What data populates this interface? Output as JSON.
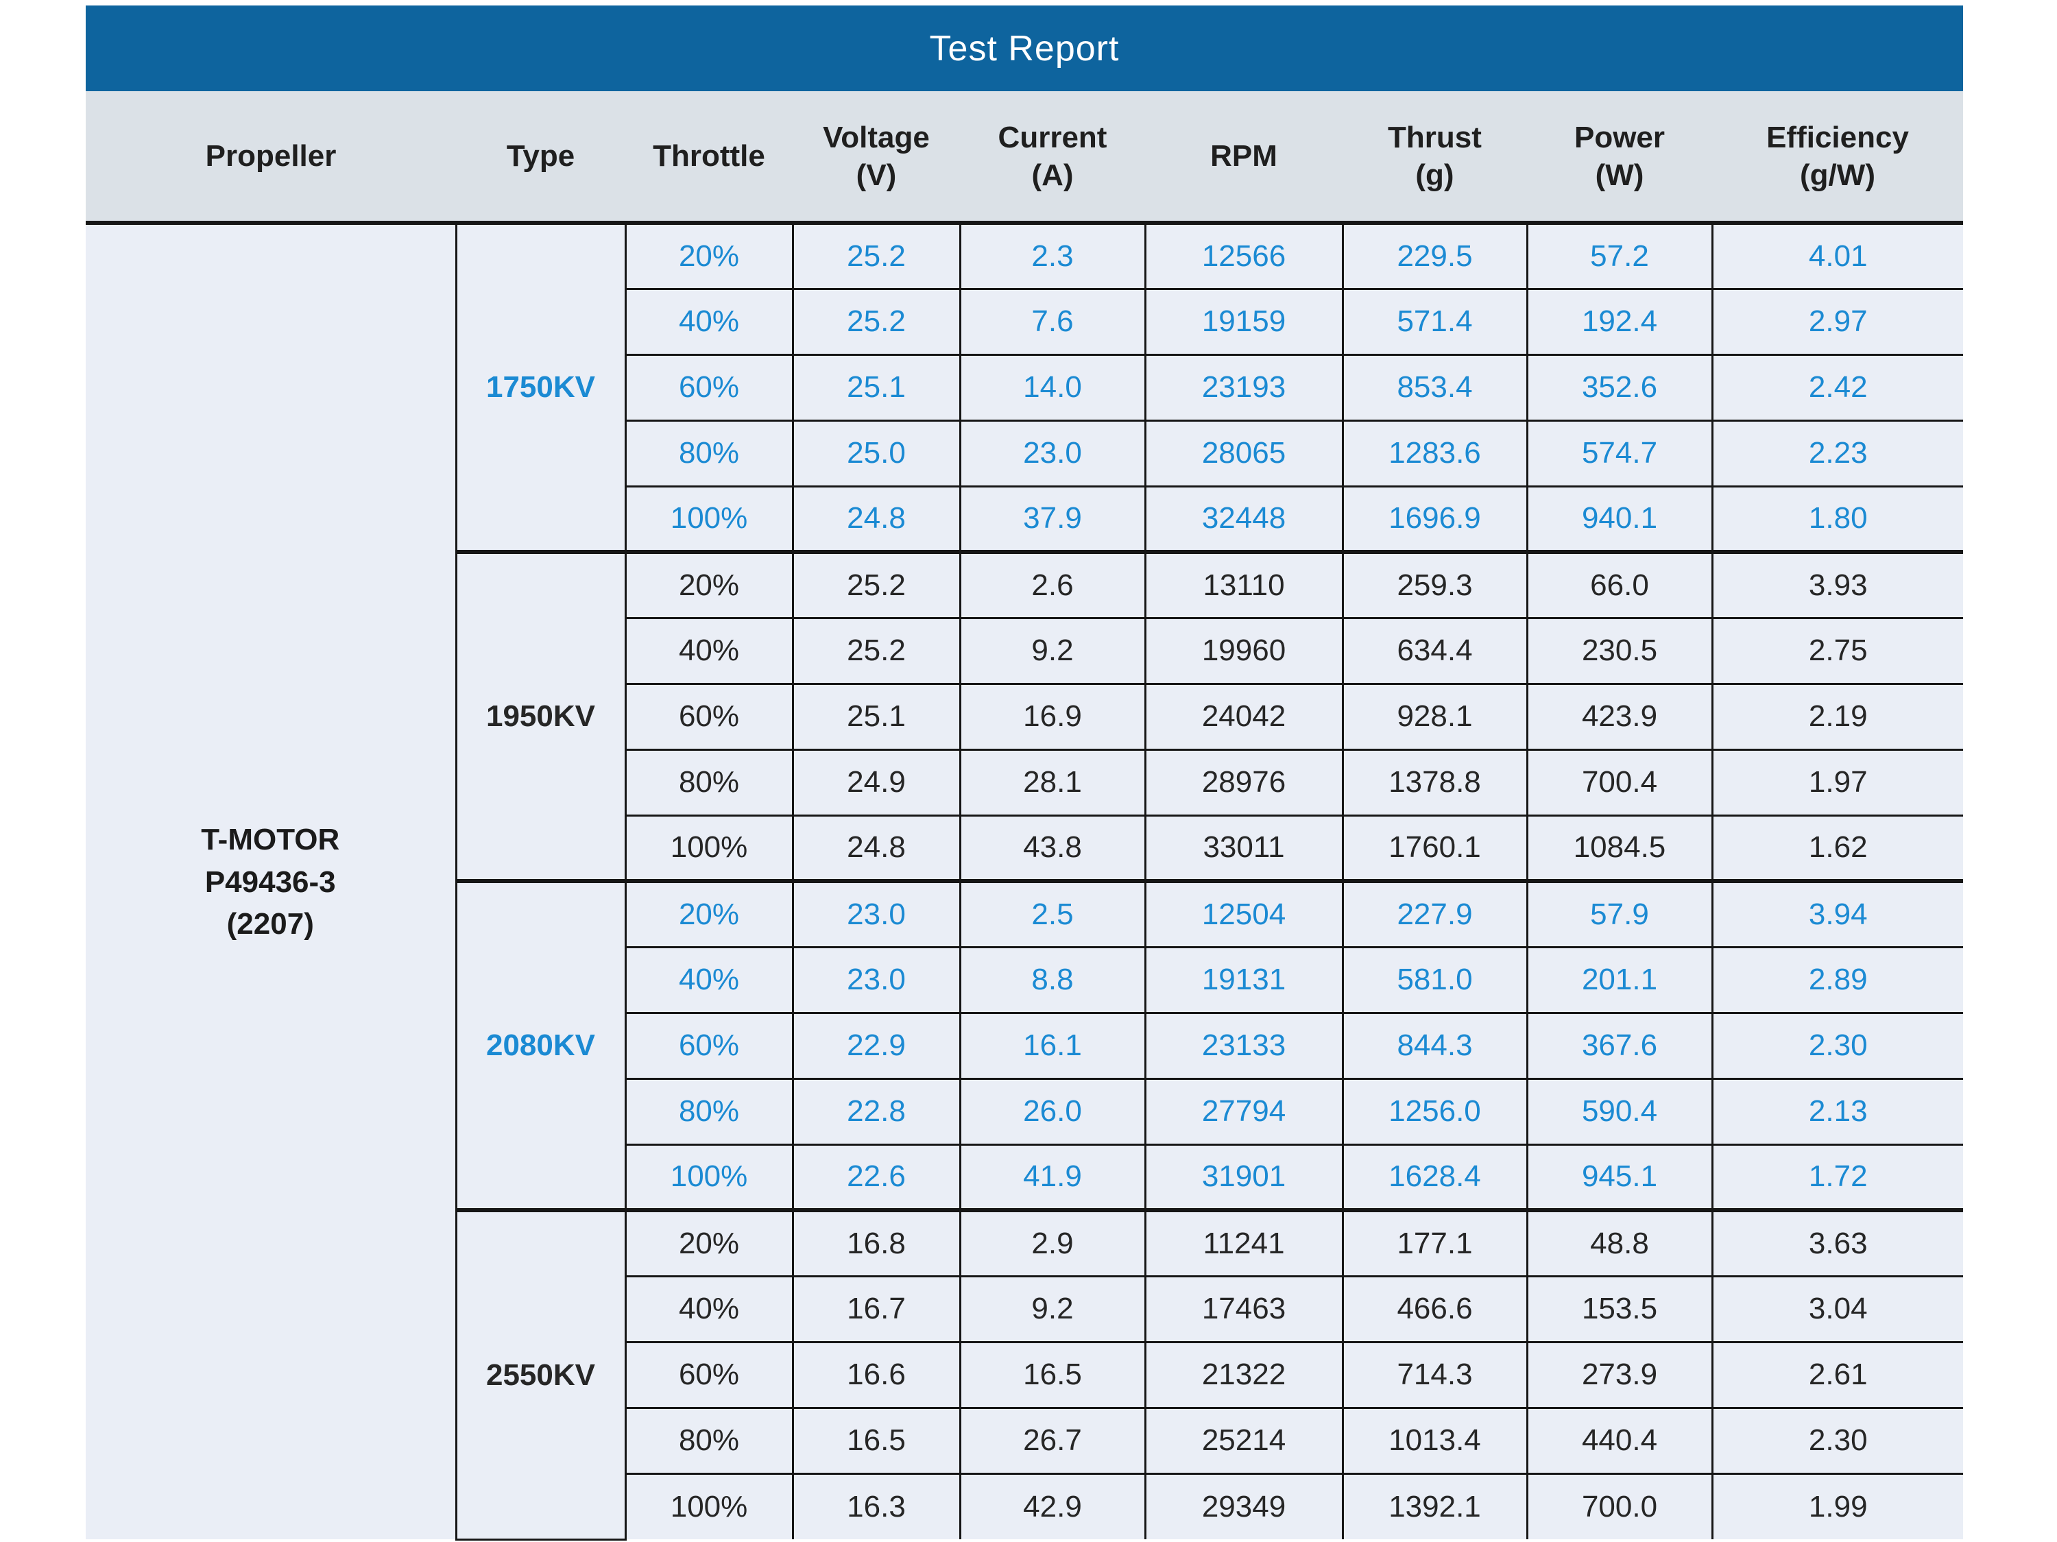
{
  "title": "Test Report",
  "headers": [
    {
      "lines": [
        "Propeller"
      ]
    },
    {
      "lines": [
        "Type"
      ]
    },
    {
      "lines": [
        "Throttle"
      ]
    },
    {
      "lines": [
        "Voltage",
        "(V)"
      ]
    },
    {
      "lines": [
        "Current",
        "(A)"
      ]
    },
    {
      "lines": [
        "RPM"
      ]
    },
    {
      "lines": [
        "Thrust",
        "(g)"
      ]
    },
    {
      "lines": [
        "Power",
        "(W)"
      ]
    },
    {
      "lines": [
        "Efficiency",
        "(g/W)"
      ]
    }
  ],
  "propeller": {
    "name_lines": [
      "T-MOTOR",
      "P49436-3",
      "(2207)"
    ]
  },
  "colors": {
    "title_bar": "#0e649e",
    "title_text": "#ffffff",
    "header_bg": "#dbe1e7",
    "cell_bg": "#eaeef6",
    "accent_blue_text": "#1b8ad3",
    "dark_text": "#262626",
    "grid_border": "#161616"
  },
  "sections": [
    {
      "type": "1750KV",
      "accent": "blue",
      "rows": [
        {
          "throttle": "20%",
          "voltage": "25.2",
          "current": "2.3",
          "rpm": "12566",
          "thrust": "229.5",
          "power": "57.2",
          "efficiency": "4.01"
        },
        {
          "throttle": "40%",
          "voltage": "25.2",
          "current": "7.6",
          "rpm": "19159",
          "thrust": "571.4",
          "power": "192.4",
          "efficiency": "2.97"
        },
        {
          "throttle": "60%",
          "voltage": "25.1",
          "current": "14.0",
          "rpm": "23193",
          "thrust": "853.4",
          "power": "352.6",
          "efficiency": "2.42"
        },
        {
          "throttle": "80%",
          "voltage": "25.0",
          "current": "23.0",
          "rpm": "28065",
          "thrust": "1283.6",
          "power": "574.7",
          "efficiency": "2.23"
        },
        {
          "throttle": "100%",
          "voltage": "24.8",
          "current": "37.9",
          "rpm": "32448",
          "thrust": "1696.9",
          "power": "940.1",
          "efficiency": "1.80"
        }
      ]
    },
    {
      "type": "1950KV",
      "accent": "dark",
      "rows": [
        {
          "throttle": "20%",
          "voltage": "25.2",
          "current": "2.6",
          "rpm": "13110",
          "thrust": "259.3",
          "power": "66.0",
          "efficiency": "3.93"
        },
        {
          "throttle": "40%",
          "voltage": "25.2",
          "current": "9.2",
          "rpm": "19960",
          "thrust": "634.4",
          "power": "230.5",
          "efficiency": "2.75"
        },
        {
          "throttle": "60%",
          "voltage": "25.1",
          "current": "16.9",
          "rpm": "24042",
          "thrust": "928.1",
          "power": "423.9",
          "efficiency": "2.19"
        },
        {
          "throttle": "80%",
          "voltage": "24.9",
          "current": "28.1",
          "rpm": "28976",
          "thrust": "1378.8",
          "power": "700.4",
          "efficiency": "1.97"
        },
        {
          "throttle": "100%",
          "voltage": "24.8",
          "current": "43.8",
          "rpm": "33011",
          "thrust": "1760.1",
          "power": "1084.5",
          "efficiency": "1.62"
        }
      ]
    },
    {
      "type": "2080KV",
      "accent": "blue",
      "rows": [
        {
          "throttle": "20%",
          "voltage": "23.0",
          "current": "2.5",
          "rpm": "12504",
          "thrust": "227.9",
          "power": "57.9",
          "efficiency": "3.94"
        },
        {
          "throttle": "40%",
          "voltage": "23.0",
          "current": "8.8",
          "rpm": "19131",
          "thrust": "581.0",
          "power": "201.1",
          "efficiency": "2.89"
        },
        {
          "throttle": "60%",
          "voltage": "22.9",
          "current": "16.1",
          "rpm": "23133",
          "thrust": "844.3",
          "power": "367.6",
          "efficiency": "2.30"
        },
        {
          "throttle": "80%",
          "voltage": "22.8",
          "current": "26.0",
          "rpm": "27794",
          "thrust": "1256.0",
          "power": "590.4",
          "efficiency": "2.13"
        },
        {
          "throttle": "100%",
          "voltage": "22.6",
          "current": "41.9",
          "rpm": "31901",
          "thrust": "1628.4",
          "power": "945.1",
          "efficiency": "1.72"
        }
      ]
    },
    {
      "type": "2550KV",
      "accent": "dark",
      "rows": [
        {
          "throttle": "20%",
          "voltage": "16.8",
          "current": "2.9",
          "rpm": "11241",
          "thrust": "177.1",
          "power": "48.8",
          "efficiency": "3.63"
        },
        {
          "throttle": "40%",
          "voltage": "16.7",
          "current": "9.2",
          "rpm": "17463",
          "thrust": "466.6",
          "power": "153.5",
          "efficiency": "3.04"
        },
        {
          "throttle": "60%",
          "voltage": "16.6",
          "current": "16.5",
          "rpm": "21322",
          "thrust": "714.3",
          "power": "273.9",
          "efficiency": "2.61"
        },
        {
          "throttle": "80%",
          "voltage": "16.5",
          "current": "26.7",
          "rpm": "25214",
          "thrust": "1013.4",
          "power": "440.4",
          "efficiency": "2.30"
        },
        {
          "throttle": "100%",
          "voltage": "16.3",
          "current": "42.9",
          "rpm": "29349",
          "thrust": "1392.1",
          "power": "700.0",
          "efficiency": "1.99"
        }
      ]
    }
  ]
}
